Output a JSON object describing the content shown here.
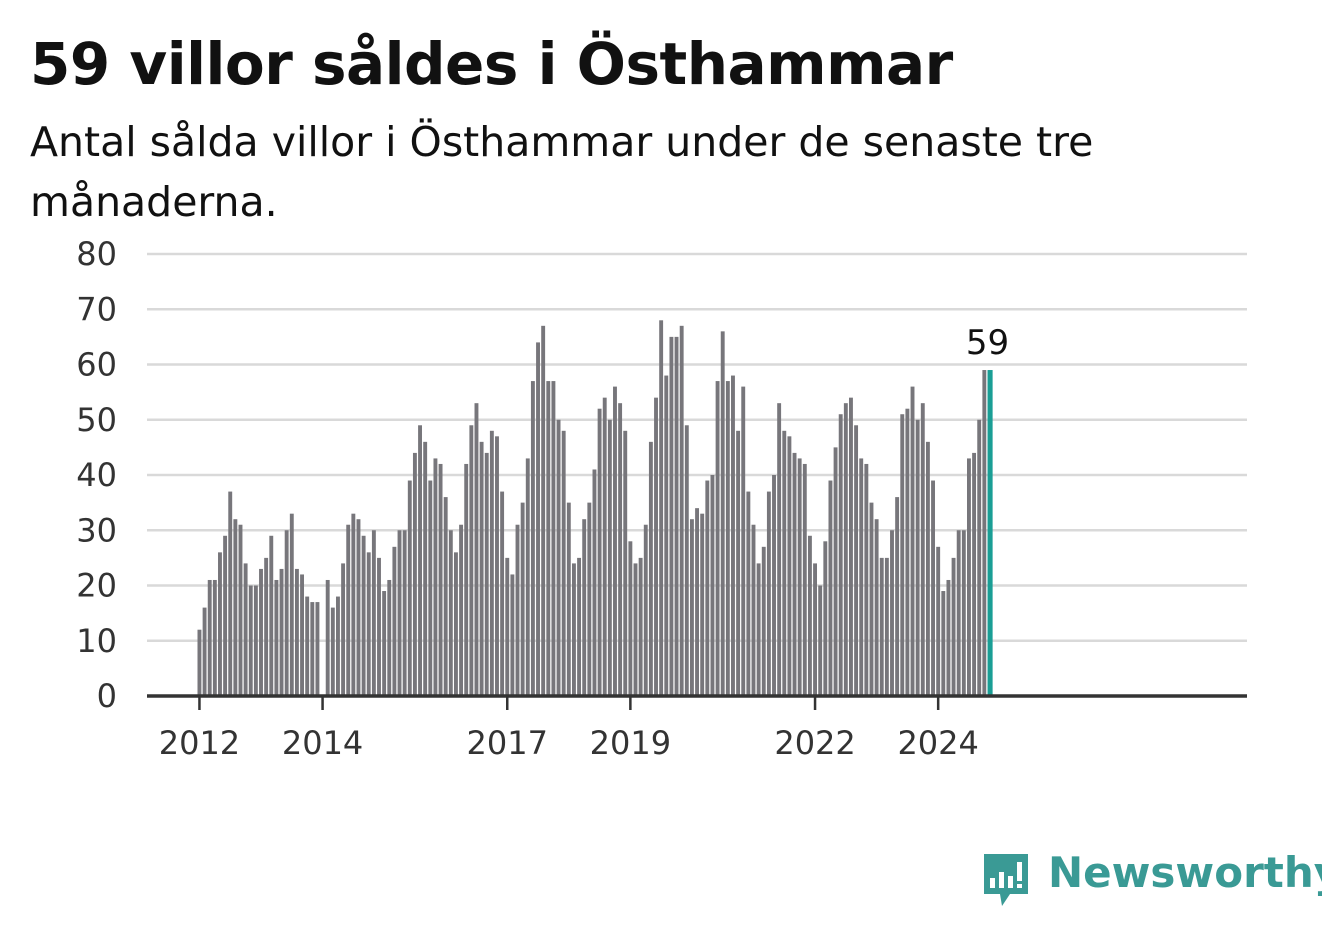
{
  "title": "59 villor såldes i Östhammar",
  "subtitle": "Antal sålda villor i Östhammar under de senaste tre månaderna.",
  "brand": {
    "name": "Newsworthy",
    "color": "#3a9a95"
  },
  "colors": {
    "bar": "#77767b",
    "highlight": "#1a9e95",
    "grid": "#d9d9d9",
    "axis": "#333333"
  },
  "chart_data": {
    "type": "bar",
    "title": "",
    "xlabel": "",
    "ylabel": "",
    "ylim": [
      0,
      80
    ],
    "yticks": [
      0,
      10,
      20,
      30,
      40,
      50,
      60,
      70,
      80
    ],
    "grid": true,
    "start": {
      "year": 2012,
      "month": 1
    },
    "xticks": [
      {
        "label": "2012",
        "year": 2012
      },
      {
        "label": "2014",
        "year": 2014
      },
      {
        "label": "2017",
        "year": 2017
      },
      {
        "label": "2019",
        "year": 2019
      },
      {
        "label": "2022",
        "year": 2022
      },
      {
        "label": "2024",
        "year": 2024
      }
    ],
    "values": [
      12,
      16,
      21,
      21,
      26,
      29,
      37,
      32,
      31,
      24,
      20,
      20,
      23,
      25,
      29,
      21,
      23,
      30,
      33,
      23,
      22,
      18,
      17,
      17,
      null,
      21,
      16,
      18,
      24,
      31,
      33,
      32,
      29,
      26,
      30,
      25,
      19,
      21,
      27,
      30,
      30,
      39,
      44,
      49,
      46,
      39,
      43,
      42,
      36,
      30,
      26,
      31,
      42,
      49,
      53,
      46,
      44,
      48,
      47,
      37,
      25,
      22,
      31,
      35,
      43,
      57,
      64,
      67,
      57,
      57,
      50,
      48,
      35,
      24,
      25,
      32,
      35,
      41,
      52,
      54,
      50,
      56,
      53,
      48,
      28,
      24,
      25,
      31,
      46,
      54,
      68,
      58,
      65,
      65,
      67,
      49,
      32,
      34,
      33,
      39,
      40,
      57,
      66,
      57,
      58,
      48,
      56,
      37,
      31,
      24,
      27,
      37,
      40,
      53,
      48,
      47,
      44,
      43,
      42,
      29,
      24,
      20,
      28,
      39,
      45,
      51,
      53,
      54,
      49,
      43,
      42,
      35,
      32,
      25,
      25,
      30,
      36,
      51,
      52,
      56,
      50,
      53,
      46,
      39,
      27,
      19,
      21,
      25,
      30,
      30,
      43,
      44,
      50,
      59,
      59
    ],
    "highlight_last": true,
    "annotation": "59"
  }
}
